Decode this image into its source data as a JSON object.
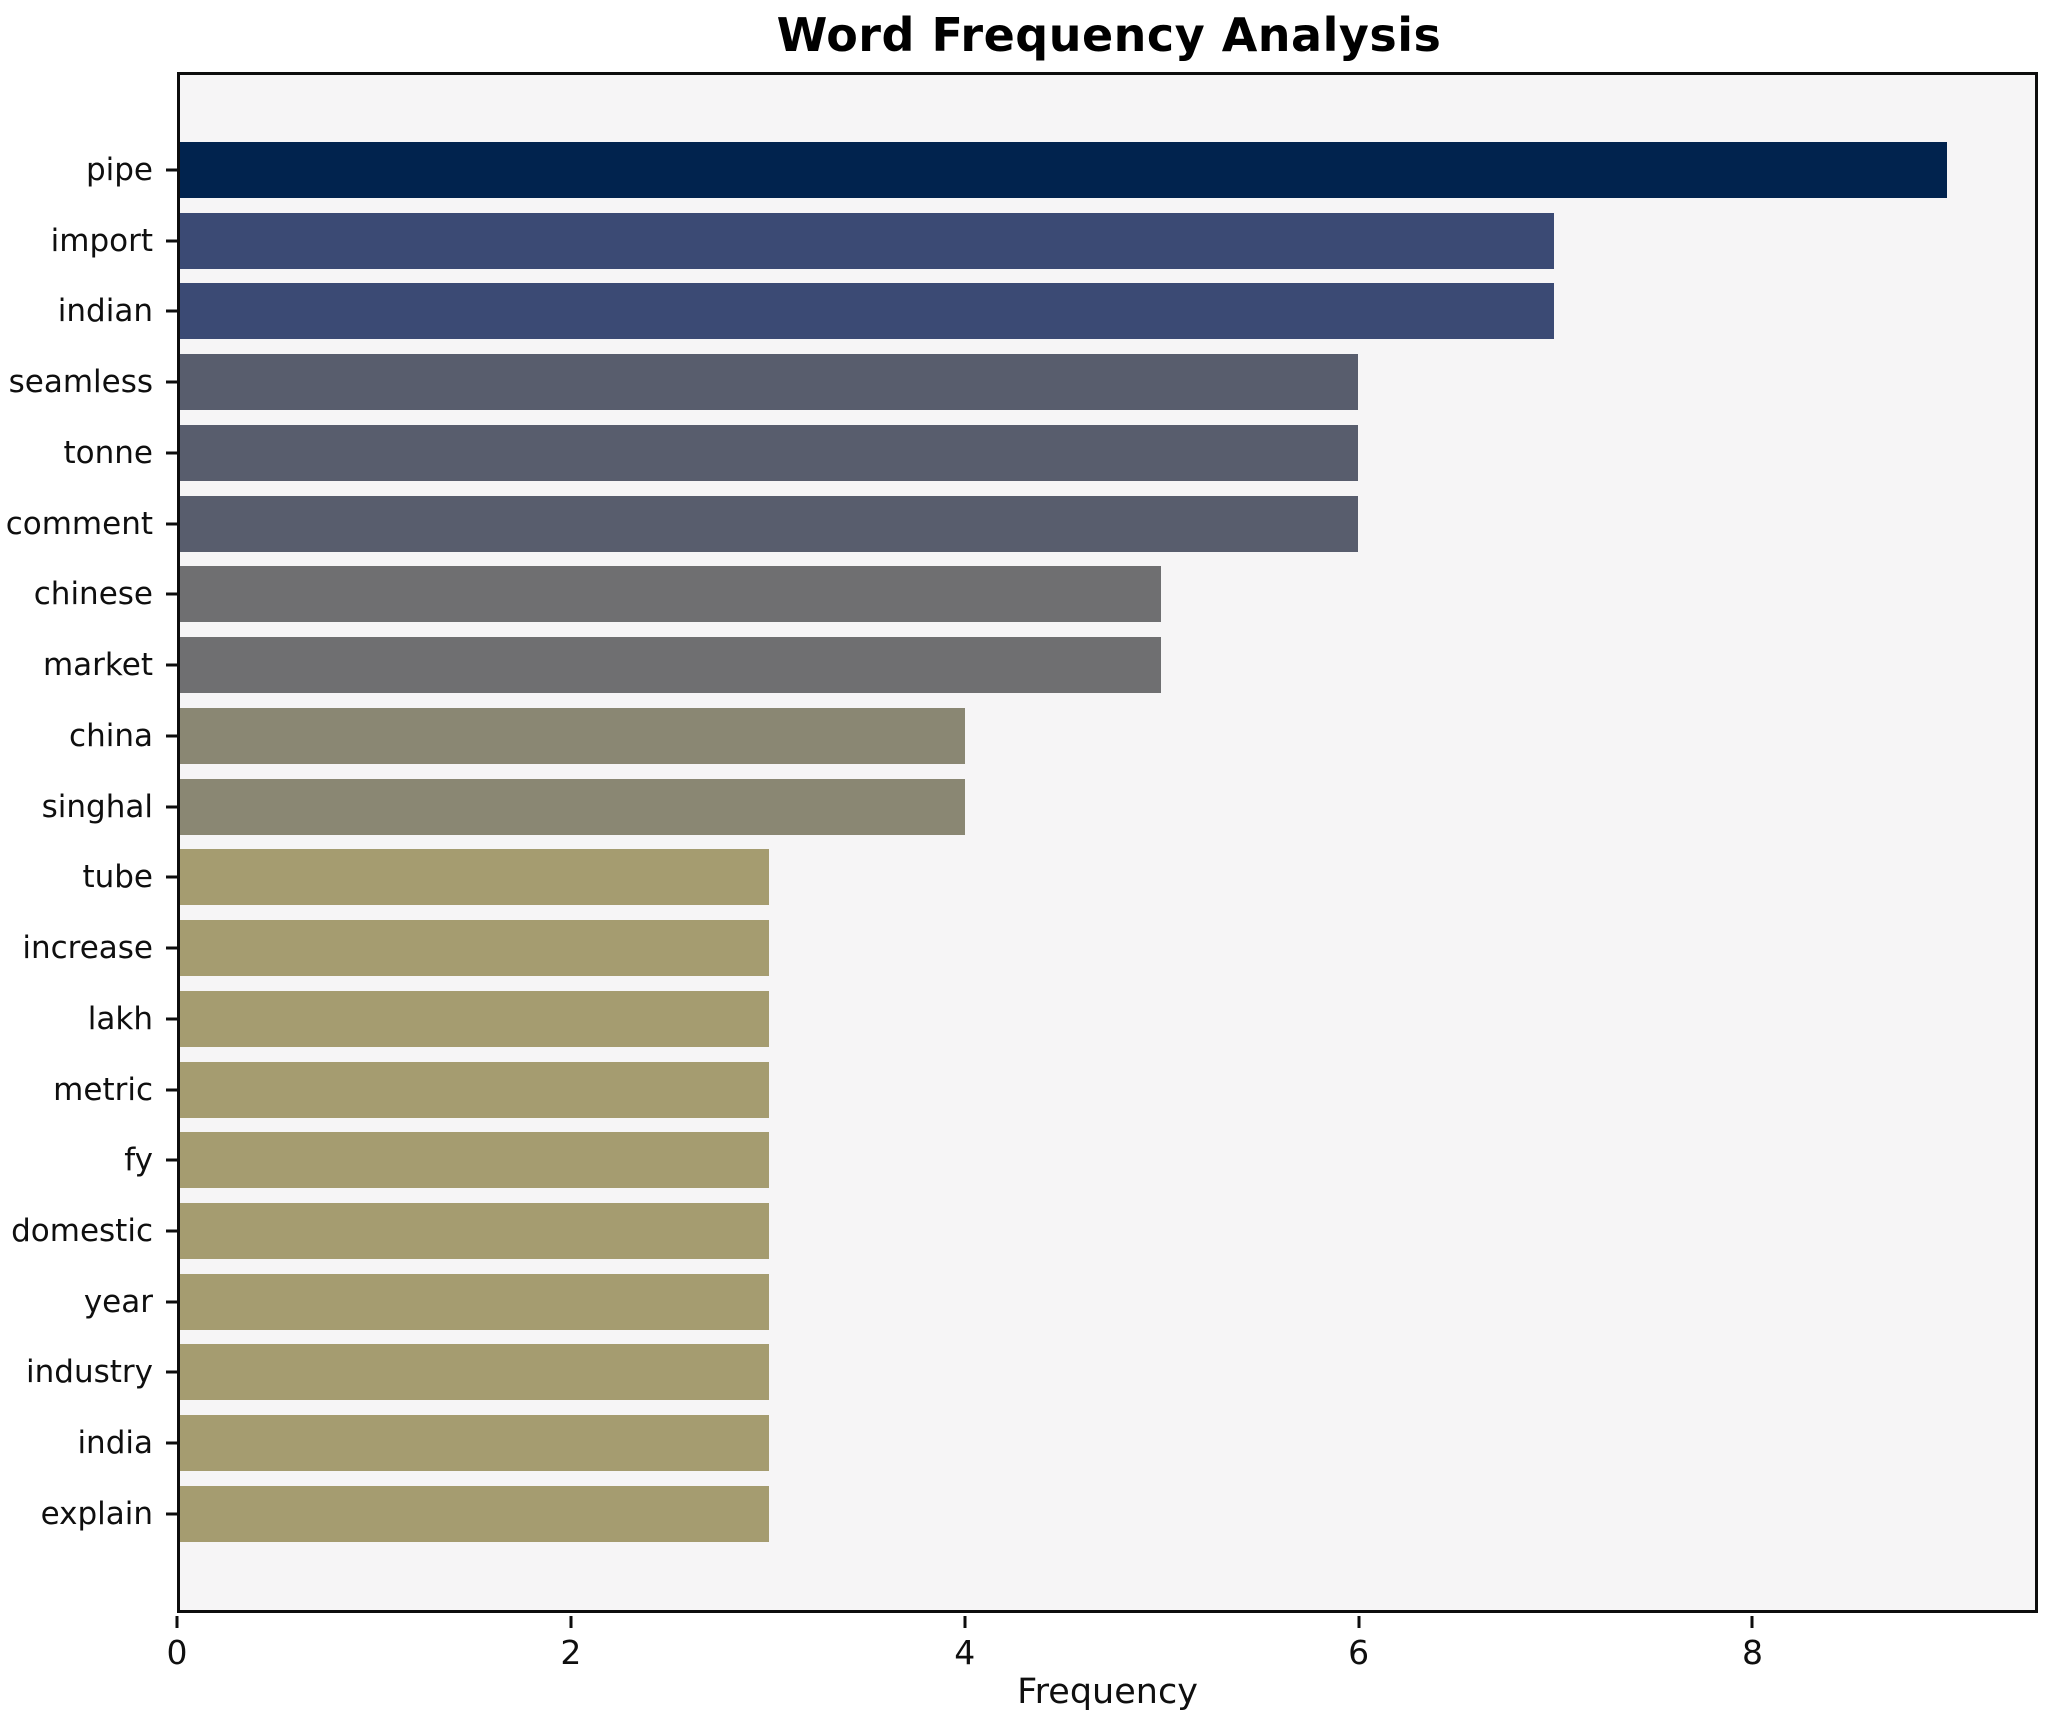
{
  "chart_data": {
    "type": "bar",
    "orientation": "horizontal",
    "title": "Word Frequency Analysis",
    "xlabel": "Frequency",
    "ylabel": "",
    "categories": [
      "pipe",
      "import",
      "indian",
      "seamless",
      "tonne",
      "comment",
      "chinese",
      "market",
      "china",
      "singhal",
      "tube",
      "increase",
      "lakh",
      "metric",
      "fy",
      "domestic",
      "year",
      "industry",
      "india",
      "explain"
    ],
    "values": [
      9,
      7,
      7,
      6,
      6,
      6,
      5,
      5,
      4,
      4,
      3,
      3,
      3,
      3,
      3,
      3,
      3,
      3,
      3,
      3
    ],
    "bar_colors": [
      "#01234e",
      "#3b4a74",
      "#3b4a74",
      "#585d6d",
      "#585d6d",
      "#585d6d",
      "#6f6f71",
      "#6f6f71",
      "#8a8773",
      "#8a8773",
      "#a59c70",
      "#a59c70",
      "#a59c70",
      "#a59c70",
      "#a59c70",
      "#a59c70",
      "#a59c70",
      "#a59c70",
      "#a59c70",
      "#a59c70"
    ],
    "xticks": [
      0,
      2,
      4,
      6,
      8
    ],
    "xlim": [
      0,
      9.45
    ],
    "grid": false,
    "legend": "none",
    "plot_background": "#f6f5f6",
    "figure_background": "#ffffff",
    "text_color": "#0f0f0f"
  }
}
